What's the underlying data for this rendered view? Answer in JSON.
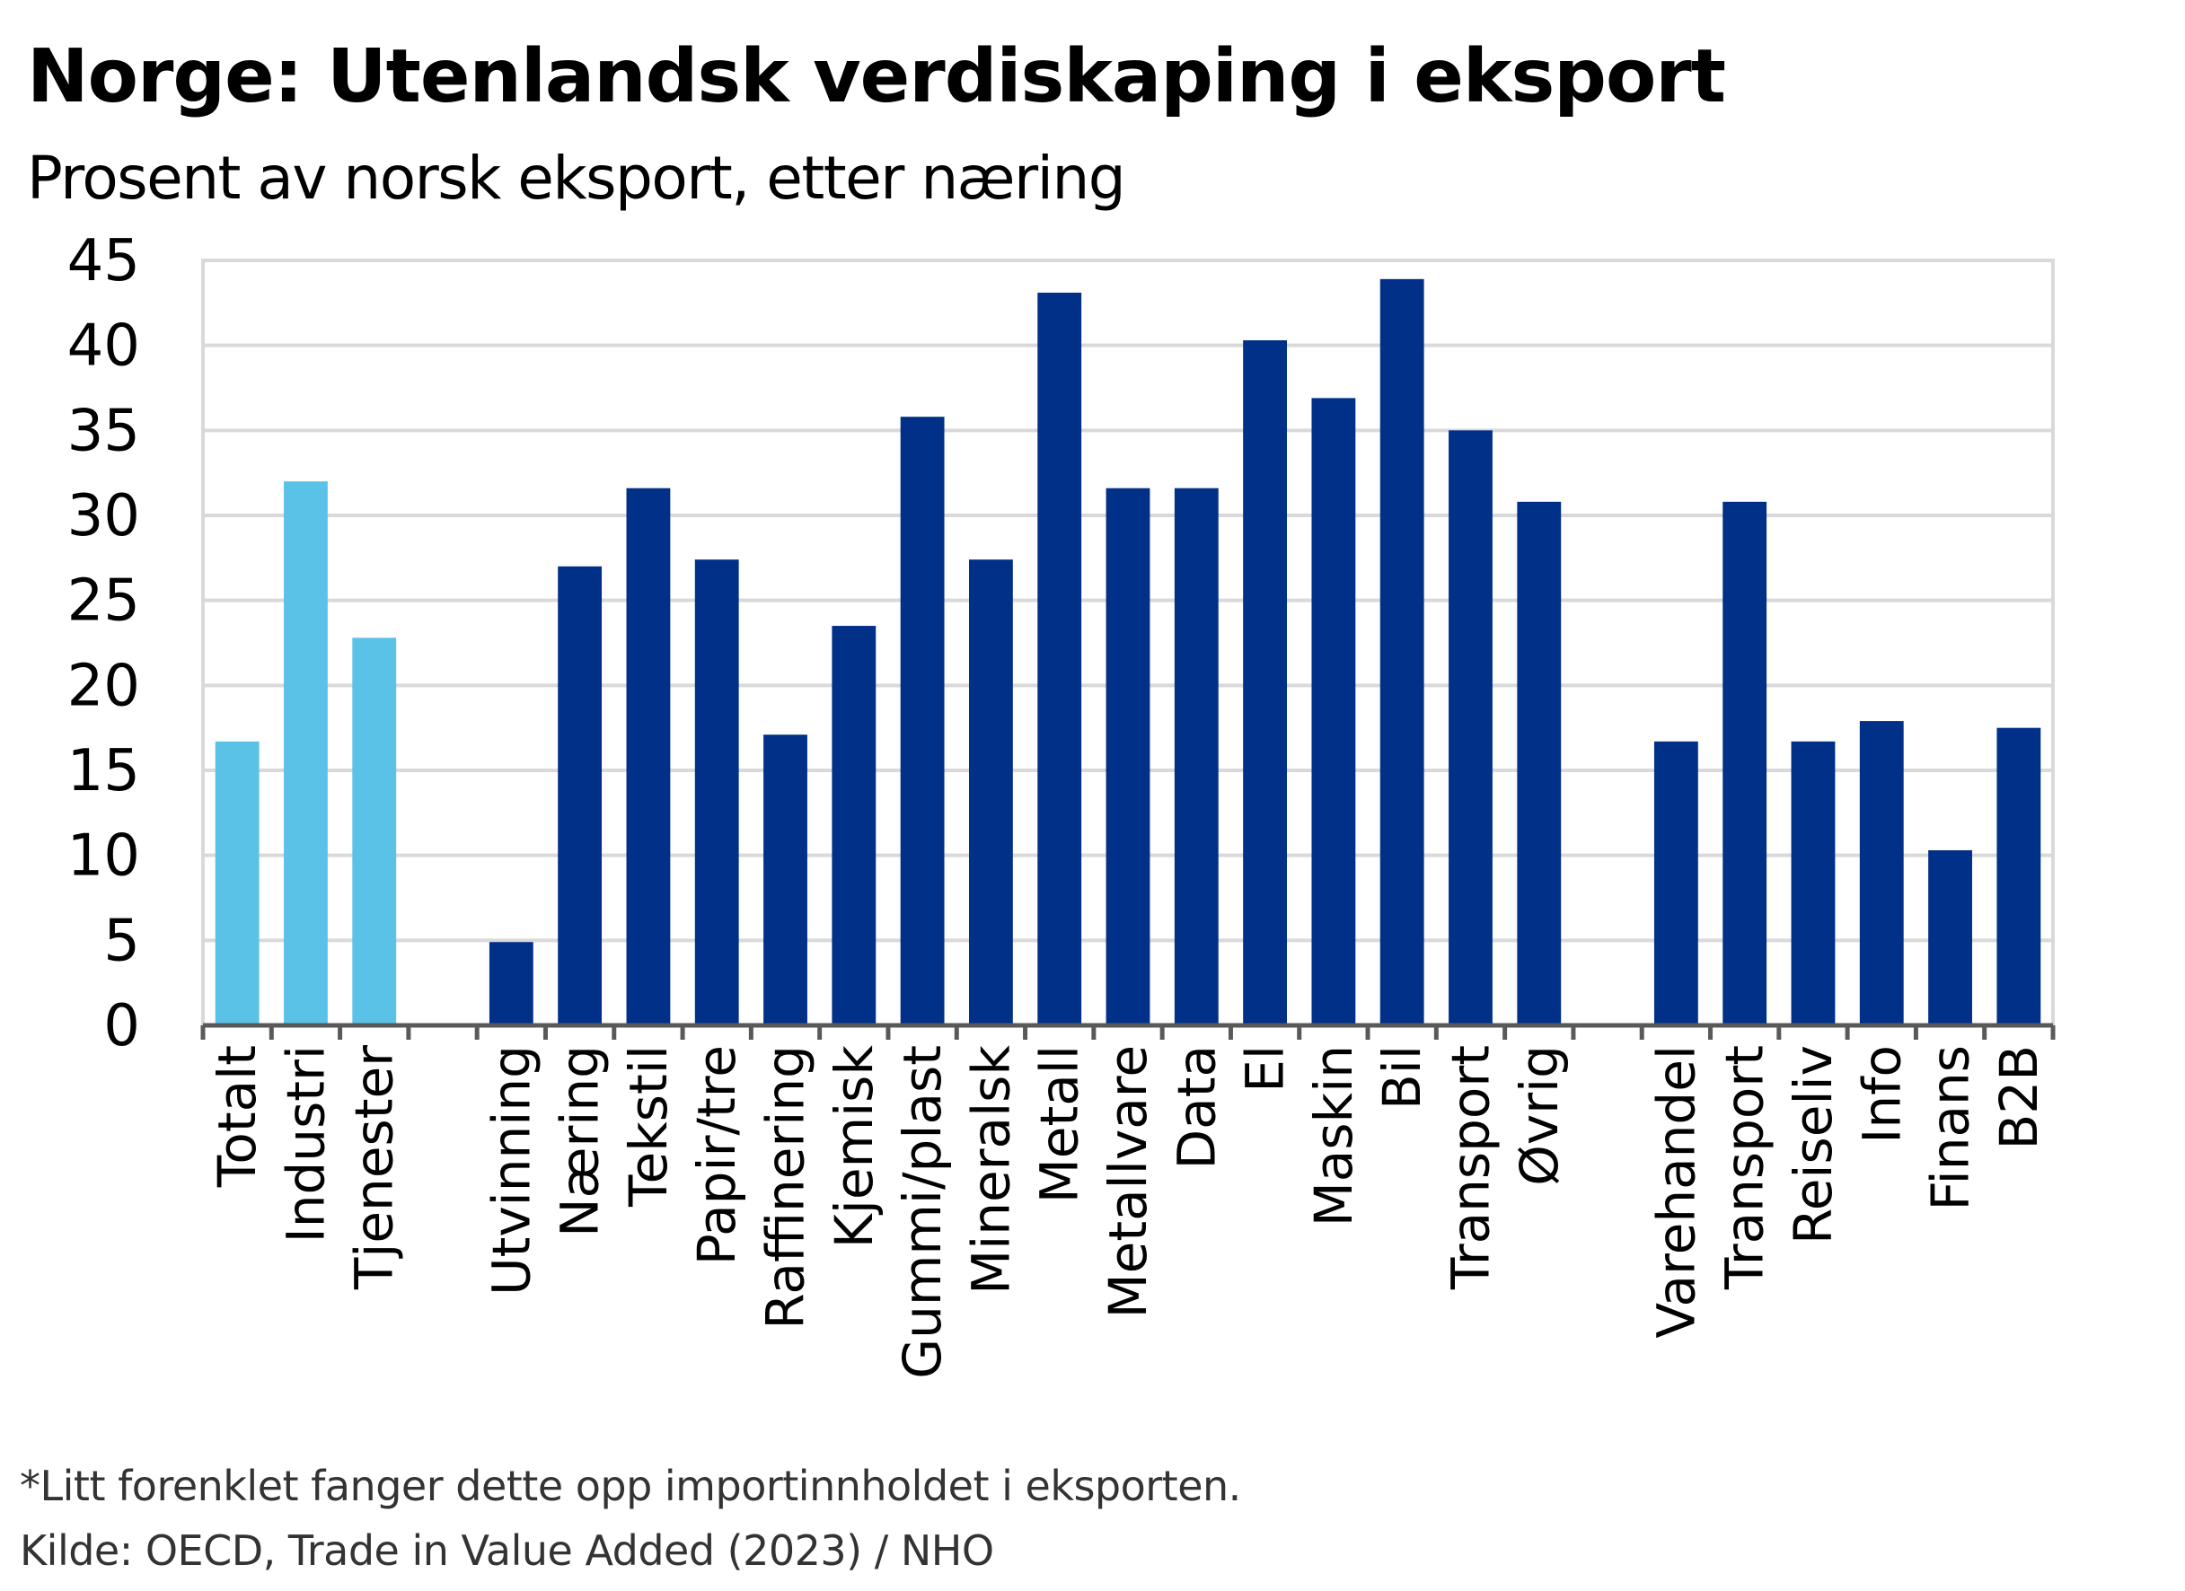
{
  "title": "Norge:  Utenlandsk verdiskaping i eksport",
  "subtitle": "Prosent av norsk eksport, etter næring",
  "footnote": "*Litt forenklet fanger dette opp importinnholdet i eksporten.",
  "source": "Kilde: OECD, Trade in Value Added (2023)  / NHO",
  "colors": {
    "light": "#5bc2e7",
    "dark": "#003087",
    "grid": "#d9d9d9",
    "axis": "#595959"
  },
  "chart_data": {
    "type": "bar",
    "ylim": [
      0,
      45
    ],
    "yticks": [
      0,
      5,
      10,
      15,
      20,
      25,
      30,
      35,
      40,
      45
    ],
    "grid": true,
    "categories": [
      "Totalt",
      "Industri",
      "Tjenester",
      "",
      "Utvinning",
      "Næring",
      "Tekstil",
      "Papir/tre",
      "Raffinering",
      "Kjemisk",
      "Gummi/plast",
      "Mineralsk",
      "Metall",
      "Metallvare",
      "Data",
      "El",
      "Maskin",
      "Bil",
      "Transport",
      "Øvrig",
      "",
      "Varehandel",
      "Transport",
      "Reiseliv",
      "Info",
      "Finans",
      "B2B"
    ],
    "values": [
      16.7,
      32.0,
      22.8,
      null,
      4.9,
      27.0,
      31.6,
      27.4,
      17.1,
      23.5,
      35.8,
      27.4,
      43.1,
      31.6,
      31.6,
      40.3,
      36.9,
      43.9,
      35.0,
      30.8,
      null,
      16.7,
      30.8,
      16.7,
      17.9,
      10.3,
      17.5
    ],
    "bar_colors": [
      "light",
      "light",
      "light",
      null,
      "dark",
      "dark",
      "dark",
      "dark",
      "dark",
      "dark",
      "dark",
      "dark",
      "dark",
      "dark",
      "dark",
      "dark",
      "dark",
      "dark",
      "dark",
      "dark",
      null,
      "dark",
      "dark",
      "dark",
      "dark",
      "dark",
      "dark"
    ]
  }
}
